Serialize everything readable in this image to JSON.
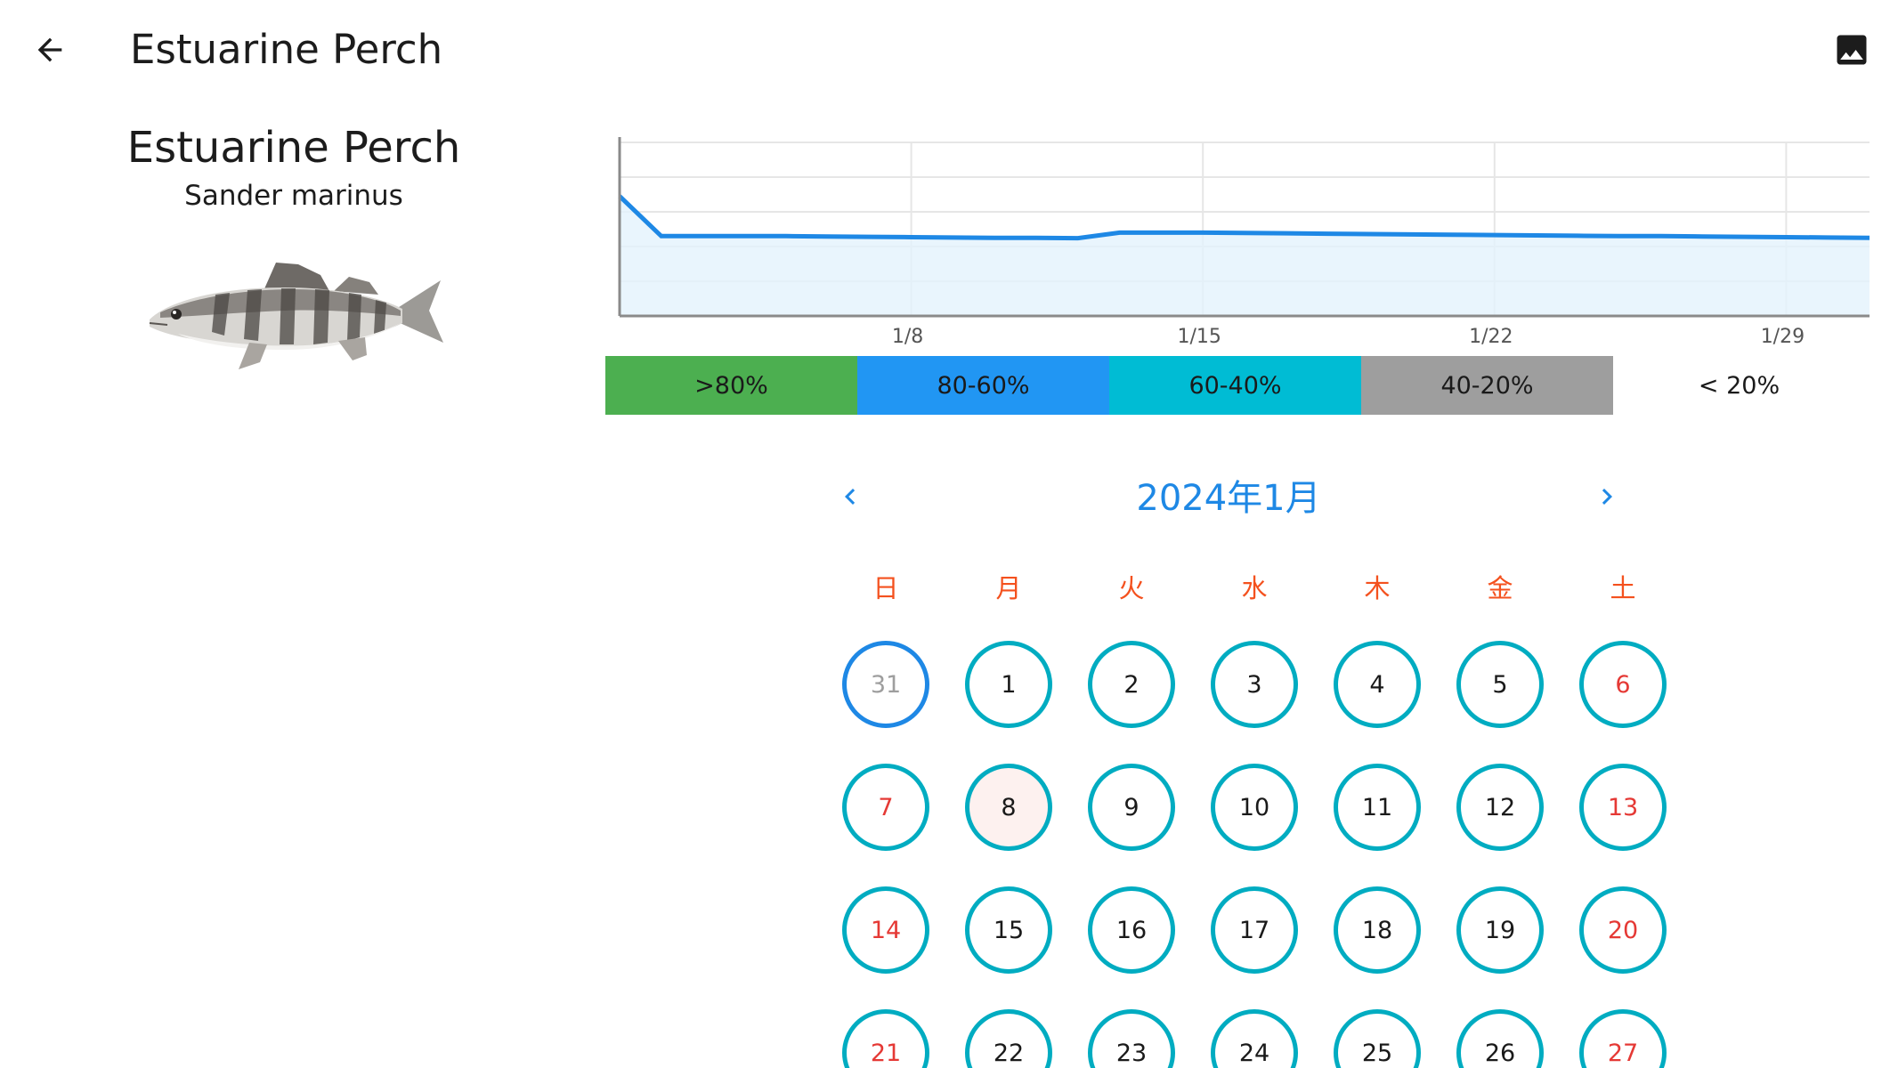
{
  "appbar": {
    "title": "Estuarine Perch",
    "back_icon": "arrow-left-icon",
    "image_icon": "image-icon"
  },
  "fish": {
    "name": "Estuarine Perch",
    "scientific": "Sander marinus"
  },
  "chart_data": {
    "type": "area",
    "x": [
      "1/1",
      "1/2",
      "1/3",
      "1/4",
      "1/5",
      "1/6",
      "1/7",
      "1/8",
      "1/9",
      "1/10",
      "1/11",
      "1/12",
      "1/13",
      "1/14",
      "1/15",
      "1/16",
      "1/17",
      "1/18",
      "1/19",
      "1/20",
      "1/21",
      "1/22",
      "1/23",
      "1/24",
      "1/25",
      "1/26",
      "1/27",
      "1/28",
      "1/29",
      "1/30",
      "1/31"
    ],
    "values": [
      69,
      46,
      46,
      46,
      46,
      45.8,
      45.6,
      45.4,
      45.2,
      45,
      45,
      44.8,
      48,
      48,
      48,
      47.8,
      47.6,
      47.4,
      47.2,
      47,
      46.8,
      46.6,
      46.4,
      46.2,
      46,
      46,
      45.8,
      45.6,
      45.4,
      45.2,
      45
    ],
    "tick_labels": [
      "1/8",
      "1/15",
      "1/22",
      "1/29"
    ],
    "tick_index": [
      7,
      14,
      21,
      28
    ],
    "ylim": [
      0,
      100
    ],
    "grid": true,
    "line_color": "#1e88e5",
    "fill_color": "#e3f2fd"
  },
  "legend": [
    {
      "label": ">80%",
      "color": "#4caf50"
    },
    {
      "label": "80-60%",
      "color": "#2196f3"
    },
    {
      "label": "60-40%",
      "color": "#00bcd4"
    },
    {
      "label": "40-20%",
      "color": "#9e9e9e"
    },
    {
      "label": "< 20%",
      "color": "#ffffff"
    }
  ],
  "calendar": {
    "title": "2024年1月",
    "prev_icon": "chevron-left-icon",
    "next_icon": "chevron-right-icon",
    "weekdays": [
      "日",
      "月",
      "火",
      "水",
      "木",
      "金",
      "土"
    ],
    "days": [
      {
        "label": "31",
        "state": "other"
      },
      {
        "label": "1"
      },
      {
        "label": "2"
      },
      {
        "label": "3"
      },
      {
        "label": "4"
      },
      {
        "label": "5"
      },
      {
        "label": "6",
        "state": "weekend"
      },
      {
        "label": "7",
        "state": "weekend"
      },
      {
        "label": "8",
        "state": "highlight"
      },
      {
        "label": "9"
      },
      {
        "label": "10"
      },
      {
        "label": "11"
      },
      {
        "label": "12"
      },
      {
        "label": "13",
        "state": "weekend"
      },
      {
        "label": "14",
        "state": "weekend"
      },
      {
        "label": "15"
      },
      {
        "label": "16"
      },
      {
        "label": "17"
      },
      {
        "label": "18"
      },
      {
        "label": "19"
      },
      {
        "label": "20",
        "state": "weekend"
      },
      {
        "label": "21",
        "state": "weekend"
      },
      {
        "label": "22"
      },
      {
        "label": "23"
      },
      {
        "label": "24"
      },
      {
        "label": "25"
      },
      {
        "label": "26"
      },
      {
        "label": "27",
        "state": "weekend"
      }
    ]
  }
}
